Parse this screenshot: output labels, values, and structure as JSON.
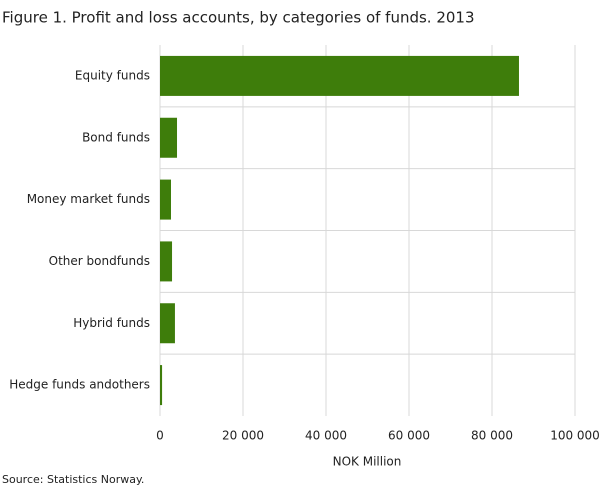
{
  "chart_data": {
    "type": "barh",
    "title": "Figure 1. Profit and loss accounts, by categories of funds. 2013",
    "xlabel": "NOK Million",
    "categories": [
      "Equity funds",
      "Bond funds",
      "Money market funds",
      "Other bondfunds",
      "Hybrid funds",
      "Hedge funds andothers"
    ],
    "values": [
      86500,
      4100,
      2650,
      2900,
      3600,
      500
    ],
    "color": "#3e7d0b",
    "xlim": [
      0,
      100000
    ],
    "xticks": [
      0,
      {
        "value": 20000,
        "label": "20 000"
      },
      {
        "value": 40000,
        "label": "40 000"
      },
      {
        "value": 60000,
        "label": "60 000"
      },
      {
        "value": 80000,
        "label": "80 000"
      },
      {
        "value": 100000,
        "label": "100 000"
      }
    ],
    "grid": true
  },
  "source": "Source: Statistics Norway."
}
